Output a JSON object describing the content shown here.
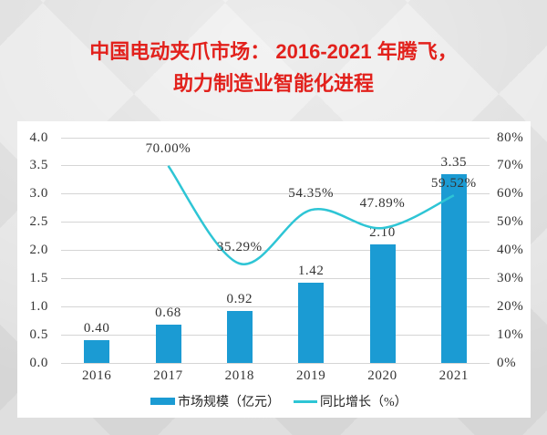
{
  "title": {
    "line1": "中国电动夹爪市场： 2016-2021 年腾飞，",
    "line2": "助力制造业智能化进程",
    "color": "#e2211c"
  },
  "chart_data": {
    "type": "combo",
    "categories": [
      "2016",
      "2017",
      "2018",
      "2019",
      "2020",
      "2021"
    ],
    "series": [
      {
        "name": "市场规模（亿元）",
        "type": "bar",
        "axis": "left",
        "color": "#1b9bd3",
        "values": [
          0.4,
          0.68,
          0.92,
          1.42,
          2.1,
          3.35
        ],
        "labels": [
          "0.40",
          "0.68",
          "0.92",
          "1.42",
          "2.10",
          "3.35"
        ]
      },
      {
        "name": "同比增长（%）",
        "type": "line",
        "axis": "right",
        "color": "#2ec5d5",
        "values": [
          null,
          70.0,
          35.29,
          54.35,
          47.89,
          59.52
        ],
        "labels": [
          "",
          "70.00%",
          "35.29%",
          "54.35%",
          "47.89%",
          "59.52%"
        ]
      }
    ],
    "left_axis": {
      "min": 0.0,
      "max": 4.0,
      "step": 0.5,
      "ticks": [
        "4.0",
        "3.5",
        "3.0",
        "2.5",
        "2.0",
        "1.5",
        "1.0",
        "0.5",
        "0.0"
      ]
    },
    "right_axis": {
      "min": 0,
      "max": 80,
      "step": 10,
      "ticks": [
        "80%",
        "70%",
        "60%",
        "50%",
        "40%",
        "30%",
        "20%",
        "10%",
        "0%"
      ]
    },
    "grid": true,
    "legend_position": "bottom"
  }
}
